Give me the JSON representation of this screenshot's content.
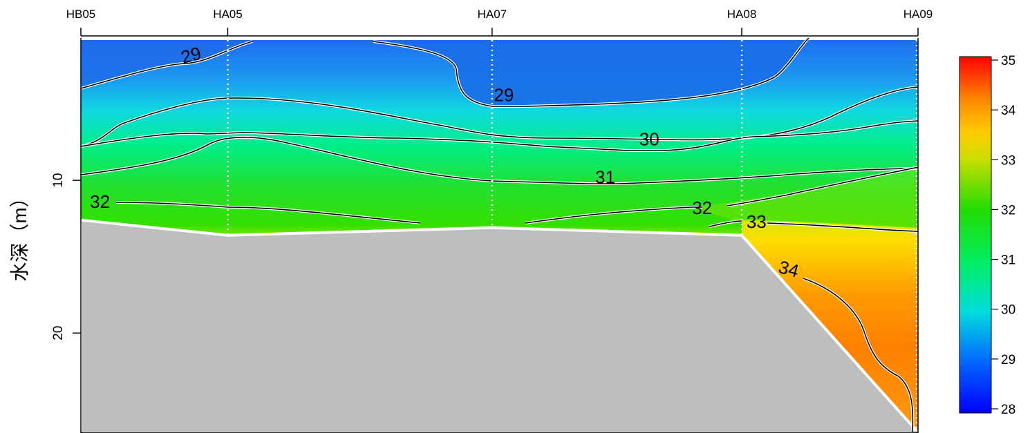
{
  "chart_data": {
    "type": "heatmap",
    "title": "",
    "xlabel": "",
    "ylabel": "水深（m）",
    "stations": [
      {
        "name": "HB05",
        "x": 0
      },
      {
        "name": "HA05",
        "x": 1
      },
      {
        "name": "HA07",
        "x": 2.8
      },
      {
        "name": "HA08",
        "x": 4.5
      },
      {
        "name": "HA09",
        "x": 5.7
      }
    ],
    "xlim": [
      0,
      5.7
    ],
    "ylim": [
      0,
      26.5
    ],
    "y_reversed": true,
    "y_ticks": [
      10,
      20
    ],
    "seabed_depth": [
      {
        "x": 0,
        "depth": 12.6
      },
      {
        "x": 1,
        "depth": 13.6
      },
      {
        "x": 2.8,
        "depth": 13.1
      },
      {
        "x": 4.5,
        "depth": 13.6
      },
      {
        "x": 5.7,
        "depth": 26.5
      }
    ],
    "contour_labels": [
      {
        "text": "29",
        "x": 0.75,
        "depth": 1.8
      },
      {
        "text": "29",
        "x": 2.88,
        "depth": 4.4
      },
      {
        "text": "30",
        "x": 3.87,
        "depth": 7.3
      },
      {
        "text": "31",
        "x": 3.57,
        "depth": 9.8
      },
      {
        "text": "32",
        "x": 0.13,
        "depth": 11.4
      },
      {
        "text": "32",
        "x": 4.23,
        "depth": 11.8
      },
      {
        "text": "33",
        "x": 4.6,
        "depth": 12.7
      },
      {
        "text": "34",
        "x": 4.82,
        "depth": 15.8
      }
    ],
    "colorbar": {
      "min": 28,
      "max": 35,
      "ticks": [
        28,
        29,
        30,
        31,
        32,
        33,
        34,
        35
      ],
      "colors": [
        "#0000ff",
        "#0066ff",
        "#00dddd",
        "#00ee66",
        "#22dd00",
        "#ccdd00",
        "#ffcc00",
        "#ff8800",
        "#ff0000"
      ]
    },
    "grid": false,
    "legend": "right",
    "colors": {
      "seabed": "#bebebe",
      "contour_line": "#000000",
      "contour_halo": "#ffffff",
      "station_line": "#ffffff"
    }
  }
}
